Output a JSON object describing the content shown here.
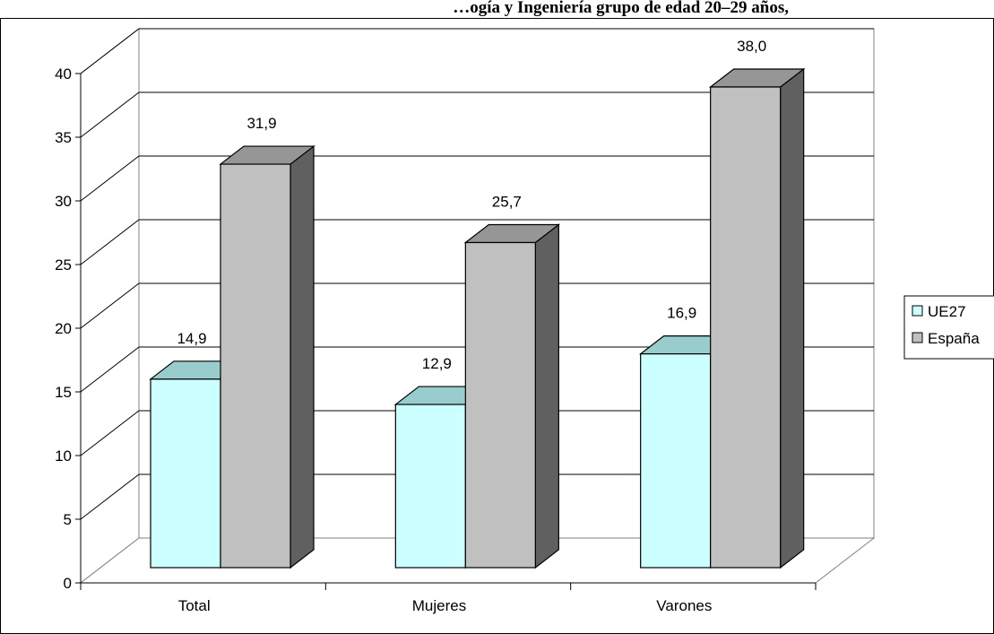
{
  "chart_data": {
    "type": "bar",
    "title": "…ogía y Ingeniería grupo de edad 20–29 años,",
    "xlabel": "",
    "ylabel": "",
    "ylim": [
      0,
      40
    ],
    "ytick_step": 5,
    "yticks": [
      "0",
      "5",
      "10",
      "15",
      "20",
      "25",
      "30",
      "35",
      "40"
    ],
    "categories": [
      "Total",
      "Mujeres",
      "Varones"
    ],
    "series": [
      {
        "name": "UE27",
        "values": [
          14.9,
          12.9,
          16.9
        ],
        "labels": [
          "14,9",
          "12,9",
          "16,9"
        ],
        "color": "#ccffff",
        "top_color": "#99cccc",
        "side_color": "#669999"
      },
      {
        "name": "España",
        "values": [
          31.9,
          25.7,
          38.0
        ],
        "labels": [
          "31,9",
          "25,7",
          "38,0"
        ],
        "color": "#c0c0c0",
        "top_color": "#969696",
        "side_color": "#606060"
      }
    ],
    "grid": true,
    "legend": "right",
    "style": "3d-clustered-column"
  }
}
